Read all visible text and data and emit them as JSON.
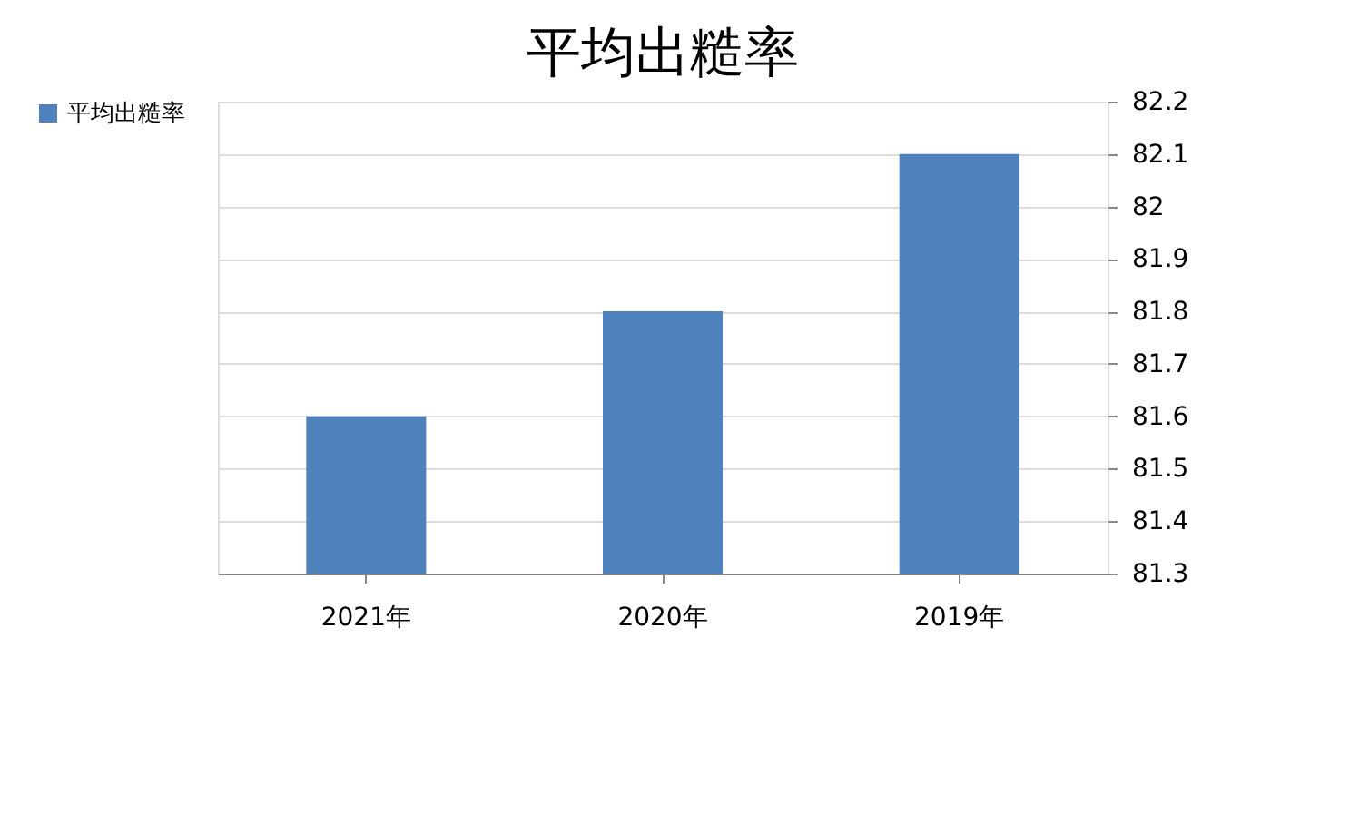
{
  "chart_data": {
    "type": "bar",
    "title": "平均出糙率",
    "categories": [
      "2021年",
      "2020年",
      "2019年"
    ],
    "series": [
      {
        "name": "平均出糙率",
        "color": "#4f81bd",
        "values": [
          81.6,
          81.8,
          82.1
        ]
      }
    ],
    "ylim": [
      81.3,
      82.2
    ],
    "yticks": [
      81.3,
      81.4,
      81.5,
      81.6,
      81.7,
      81.8,
      81.9,
      {
        "value": 82,
        "label": "82"
      },
      82.1,
      82.2
    ],
    "grid": "y",
    "legend": "left"
  }
}
